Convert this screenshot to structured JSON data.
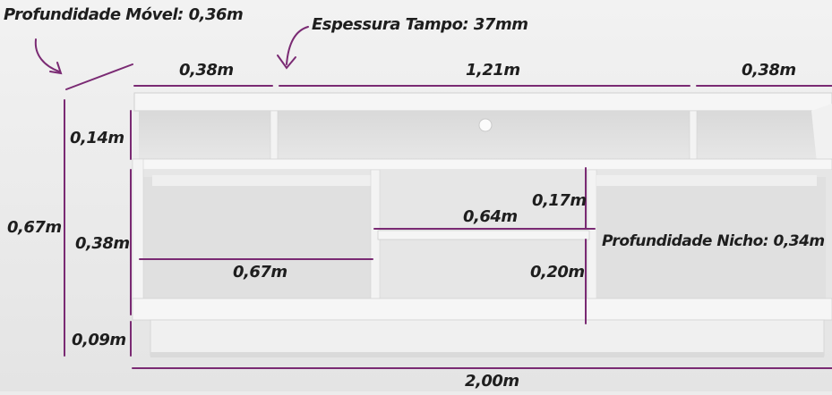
{
  "labels": {
    "depth_furniture": "Profundidade Móvel: 0,36m",
    "top_thickness": "Espessura Tampo: 37mm",
    "side_width_left": "0,38m",
    "center_width": "1,21m",
    "side_width_right": "0,38m",
    "top_niche_height": "0,14m",
    "total_height": "0,67m",
    "middle_height": "0,38m",
    "base_height": "0,09m",
    "shelf_width": "0,64m",
    "upper_niche_height": "0,17m",
    "niche_depth": "Profundidade Nicho: 0,34m",
    "left_compartment_width": "0,67m",
    "lower_niche_height": "0,20m",
    "total_width": "2,00m"
  },
  "colors": {
    "dimension_line": "#7a2a73",
    "furniture_white": "#f4f4f4",
    "furniture_shadow": "#d6d6d6",
    "text": "#1e1e1e"
  }
}
